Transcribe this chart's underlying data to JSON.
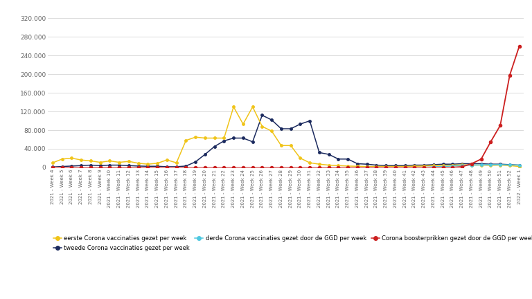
{
  "x_labels": [
    "2021 - Week 4",
    "2021 - Week 5",
    "2021 - Week 6",
    "2021 - Week 7",
    "2021 - Week 8",
    "2021 - Week 9",
    "2021 - Week 10",
    "2021 - Week 11",
    "2021 - Week 12",
    "2021 - Week 13",
    "2021 - Week 14",
    "2021 - Week 15",
    "2021 - Week 16",
    "2021 - Week 17",
    "2021 - Week 18",
    "2021 - Week 19",
    "2021 - Week 20",
    "2021 - Week 21",
    "2021 - Week 22",
    "2021 - Week 23",
    "2021 - Week 24",
    "2021 - Week 25",
    "2021 - Week 26",
    "2021 - Week 27",
    "2021 - Week 28",
    "2021 - Week 29",
    "2021 - Week 30",
    "2021 - Week 31",
    "2021 - Week 32",
    "2021 - Week 33",
    "2021 - Week 34",
    "2021 - Week 35",
    "2021 - Week 36",
    "2021 - Week 37",
    "2021 - Week 38",
    "2021 - Week 39",
    "2021 - Week 40",
    "2021 - Week 41",
    "2021 - Week 42",
    "2021 - Week 43",
    "2021 - Week 44",
    "2021 - Week 45",
    "2021 - Week 46",
    "2021 - Week 47",
    "2021 - Week 48",
    "2021 - Week 49",
    "2021 - Week 50",
    "2021 - Week 51",
    "2021 - Week 52",
    "2022 - Week 1"
  ],
  "eerste": [
    10000,
    18000,
    20000,
    16000,
    14000,
    11000,
    14000,
    11000,
    13000,
    9000,
    7000,
    9000,
    16000,
    10000,
    58000,
    65000,
    63000,
    63000,
    63000,
    130000,
    93000,
    130000,
    88000,
    78000,
    47000,
    47000,
    20000,
    10000,
    7000,
    5000,
    4000,
    3000,
    2500,
    2000,
    2000,
    2000,
    2000,
    2000,
    2500,
    3000,
    4000,
    4500,
    5000,
    5500,
    5000,
    5000,
    4500,
    5000,
    4000,
    2000
  ],
  "tweede": [
    1000,
    2000,
    3000,
    4000,
    5000,
    4000,
    5000,
    5000,
    4000,
    3000,
    2500,
    2500,
    1500,
    1500,
    3000,
    12000,
    28000,
    45000,
    57000,
    63000,
    63000,
    55000,
    112000,
    102000,
    83000,
    83000,
    93000,
    100000,
    32000,
    28000,
    18000,
    18000,
    8000,
    7000,
    5000,
    4000,
    4000,
    4000,
    5000,
    5000,
    6000,
    7000,
    7000,
    8000,
    8000,
    8000,
    7000,
    7000,
    6000,
    5000
  ],
  "derde": [
    0,
    0,
    0,
    0,
    0,
    0,
    0,
    0,
    0,
    0,
    0,
    0,
    0,
    0,
    0,
    0,
    0,
    0,
    0,
    0,
    0,
    0,
    0,
    0,
    0,
    0,
    0,
    0,
    0,
    0,
    0,
    0,
    0,
    0,
    0,
    0,
    0,
    0,
    0,
    0,
    1500,
    2000,
    3000,
    4000,
    5000,
    5500,
    6000,
    6000,
    5500,
    5000
  ],
  "booster": [
    0,
    0,
    0,
    0,
    0,
    0,
    0,
    0,
    0,
    0,
    0,
    0,
    0,
    0,
    0,
    0,
    0,
    0,
    0,
    0,
    0,
    0,
    0,
    0,
    0,
    0,
    0,
    0,
    0,
    0,
    0,
    0,
    0,
    0,
    0,
    0,
    0,
    0,
    0,
    0,
    0,
    0,
    0,
    1500,
    8000,
    18000,
    55000,
    90000,
    198000,
    260000
  ],
  "ylim": [
    0,
    340000
  ],
  "yticks": [
    0,
    40000,
    80000,
    120000,
    160000,
    200000,
    240000,
    280000,
    320000
  ],
  "ytick_labels": [
    "0",
    "40.000",
    "80.000",
    "120.000",
    "160.000",
    "200.000",
    "240.000",
    "280.000",
    "320.000"
  ],
  "color_eerste": "#f0c419",
  "color_tweede": "#1b2a5e",
  "color_derde": "#4ec8e0",
  "color_booster": "#cc1f1f",
  "bg_color": "#ffffff",
  "grid_color": "#d5d5d5",
  "legend_labels": [
    "eerste Corona vaccinaties gezet per week",
    "tweede Corona vaccinaties gezet per week",
    "derde Corona vaccinaties gezet door de GGD per week",
    "Corona boosterprikken gezet door de GGD per week"
  ]
}
